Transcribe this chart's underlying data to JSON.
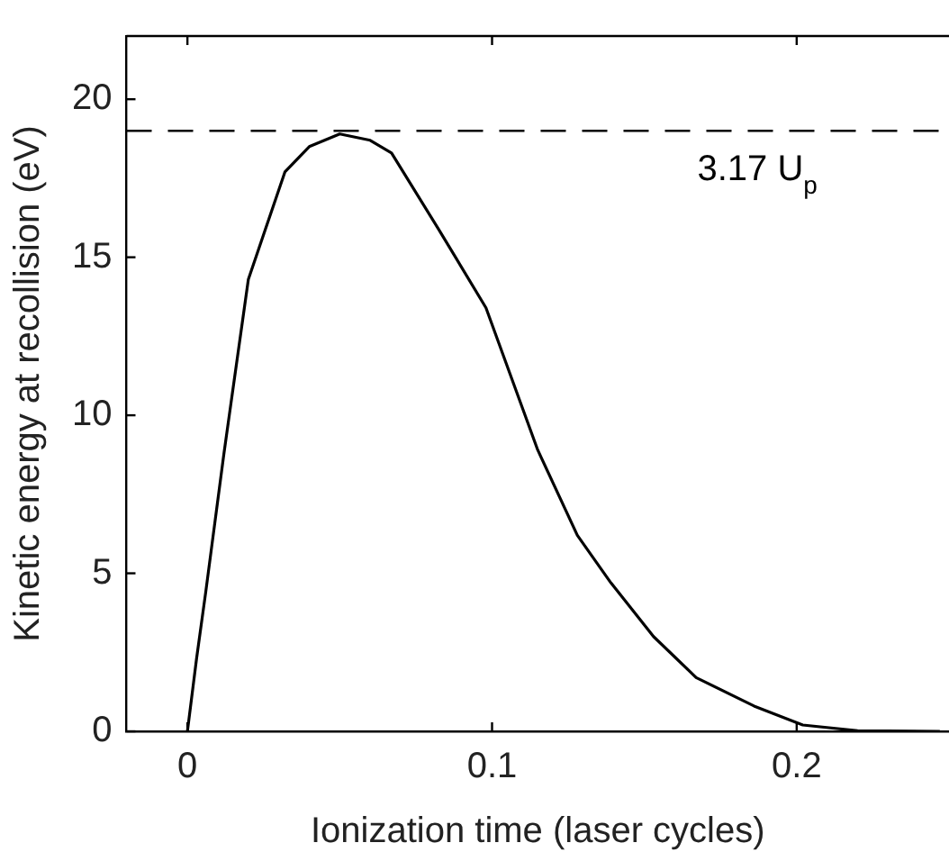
{
  "chart_data": {
    "type": "line",
    "xlabel": "Ionization time (laser cycles)",
    "ylabel": "Kinetic energy at recollision (eV)",
    "x": [
      0,
      0.003,
      0.006,
      0.012,
      0.02,
      0.032,
      0.04,
      0.05,
      0.06,
      0.067,
      0.083,
      0.098,
      0.115,
      0.128,
      0.139,
      0.153,
      0.167,
      0.186,
      0.202,
      0.22,
      0.247
    ],
    "series": [
      {
        "color": "#000000",
        "values": [
          0,
          2.3,
          4.4,
          8.8,
          14.3,
          17.7,
          18.5,
          18.9,
          18.7,
          18.3,
          15.8,
          13.4,
          8.9,
          6.2,
          4.7,
          3.0,
          1.7,
          0.8,
          0.2,
          0.02,
          0
        ]
      }
    ],
    "xlim": [
      -0.02,
      0.25
    ],
    "xticks": [
      0,
      0.1,
      0.2
    ],
    "ylim": [
      0,
      22
    ],
    "yticks": [
      0,
      5,
      10,
      15,
      20
    ],
    "ref_lines": [
      {
        "axis": "y",
        "value": 19,
        "label": "3.17 U$_{p}$",
        "color": "#000000",
        "line_style": "dashed"
      }
    ],
    "legend": false,
    "marker": "none",
    "line_style": "solid"
  }
}
